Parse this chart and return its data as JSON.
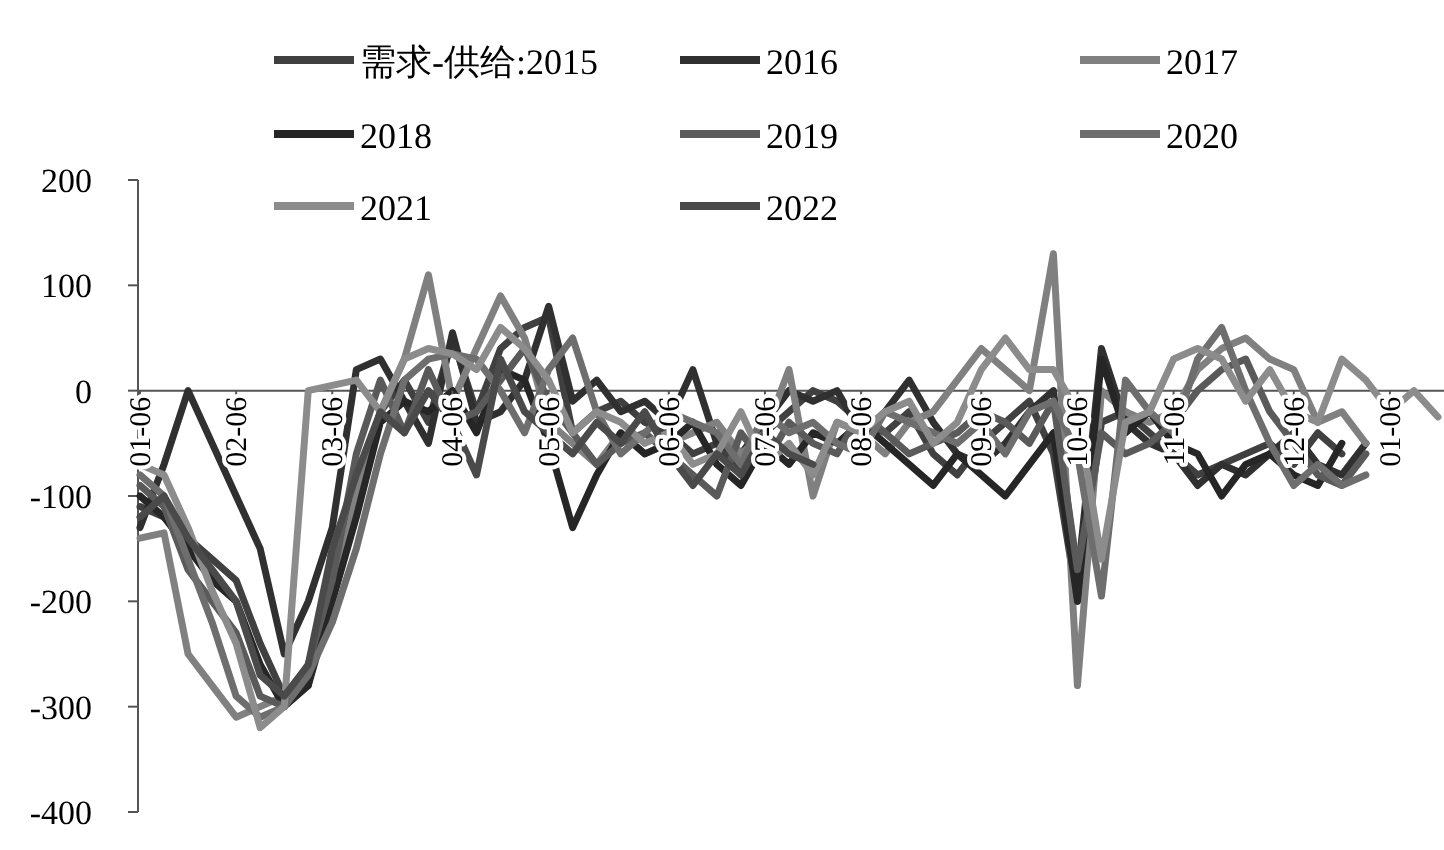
{
  "chart_data": {
    "type": "line",
    "categories": [
      "01-06",
      null,
      null,
      null,
      "02-06",
      null,
      null,
      null,
      "03-06",
      null,
      null,
      null,
      null,
      "04-06",
      null,
      null,
      null,
      "05-06",
      null,
      null,
      null,
      null,
      "06-06",
      null,
      null,
      null,
      "07-06",
      null,
      null,
      null,
      "08-06",
      null,
      null,
      null,
      null,
      "09-06",
      null,
      null,
      null,
      "10-06",
      null,
      null,
      null,
      "11-06",
      null,
      null,
      null,
      null,
      "12-06",
      null,
      null,
      null,
      "01-06",
      null,
      null
    ],
    "ylim": [
      -400,
      200
    ],
    "yticks": [
      -400,
      -300,
      -200,
      -100,
      0,
      100,
      200
    ],
    "legend": "top",
    "series": [
      {
        "name": "需求-供给:2015",
        "color": "#404040",
        "values": [
          -110,
          -120,
          -140,
          -160,
          -180,
          -240,
          -290,
          -280,
          -150,
          -100,
          -20,
          10,
          -30,
          50,
          -20,
          40,
          60,
          70,
          -40,
          -20,
          -10,
          -30,
          -40,
          -60,
          -50,
          -80,
          -40,
          -20,
          0,
          -10,
          -30,
          -40,
          -20,
          -60,
          -80,
          -50,
          -30,
          -10,
          -60,
          -200,
          -30,
          -20,
          -40,
          -60,
          -80,
          -70,
          -60,
          -50,
          -70,
          -40,
          -60,
          null,
          null,
          null,
          null
        ]
      },
      {
        "name": "2016",
        "color": "#303030",
        "values": [
          -130,
          -70,
          0,
          -50,
          -100,
          -150,
          -250,
          -200,
          -130,
          20,
          30,
          -10,
          -50,
          55,
          -30,
          -20,
          10,
          80,
          -10,
          10,
          -20,
          -10,
          -30,
          20,
          -50,
          -60,
          -30,
          0,
          -10,
          0,
          -40,
          -20,
          10,
          -30,
          -60,
          -70,
          -50,
          -20,
          0,
          -180,
          40,
          -30,
          -50,
          -60,
          -90,
          -70,
          -80,
          -60,
          -40,
          -70,
          -80,
          -50,
          null,
          null,
          null
        ]
      },
      {
        "name": "2017",
        "color": "#808080",
        "values": [
          -140,
          -135,
          -250,
          -280,
          -310,
          -300,
          -290,
          -270,
          -200,
          -100,
          -20,
          30,
          110,
          -10,
          40,
          90,
          50,
          -30,
          -50,
          -70,
          -40,
          -60,
          -50,
          -40,
          -30,
          -60,
          -40,
          20,
          -100,
          -30,
          -40,
          -60,
          -30,
          -20,
          10,
          40,
          20,
          0,
          130,
          -280,
          0,
          -20,
          -30,
          -20,
          20,
          40,
          50,
          30,
          20,
          -30,
          -20,
          -50,
          null,
          null,
          null
        ]
      },
      {
        "name": "2018",
        "color": "#262626",
        "values": [
          -100,
          -120,
          -150,
          -180,
          -200,
          -260,
          -300,
          -280,
          -200,
          -120,
          -30,
          -10,
          -20,
          0,
          -40,
          20,
          10,
          -50,
          -130,
          -80,
          -40,
          -60,
          -50,
          -30,
          -70,
          -90,
          -50,
          -70,
          -40,
          -50,
          -30,
          -50,
          -70,
          -90,
          -60,
          -80,
          -100,
          -70,
          -40,
          -200,
          30,
          -40,
          -20,
          -50,
          -60,
          -100,
          -70,
          -60,
          -80,
          -90,
          -50,
          null,
          null,
          null,
          null
        ]
      },
      {
        "name": "2019",
        "color": "#5a5a5a",
        "values": [
          -90,
          -110,
          -170,
          -200,
          -230,
          -290,
          -300,
          -260,
          -180,
          -60,
          10,
          -40,
          20,
          -30,
          -20,
          10,
          40,
          -10,
          -40,
          -70,
          -50,
          -40,
          -60,
          -80,
          -100,
          -40,
          -70,
          -30,
          -50,
          -60,
          -20,
          -40,
          -60,
          -50,
          -40,
          -20,
          -30,
          -50,
          -10,
          -170,
          -40,
          -60,
          -50,
          -30,
          0,
          20,
          30,
          -20,
          -50,
          -80,
          -90,
          -60,
          null,
          null,
          null
        ]
      },
      {
        "name": "2020",
        "color": "#6e6e6e",
        "values": [
          -80,
          -100,
          -160,
          -220,
          -290,
          -310,
          -300,
          -270,
          -220,
          -150,
          -60,
          10,
          30,
          35,
          30,
          0,
          -40,
          20,
          50,
          -20,
          -60,
          -40,
          -20,
          -30,
          -40,
          -70,
          -20,
          -40,
          -30,
          -50,
          -60,
          -20,
          -30,
          -40,
          -50,
          -30,
          -60,
          -20,
          -10,
          -60,
          -195,
          10,
          -20,
          -40,
          30,
          60,
          0,
          -50,
          -90,
          -70,
          -90,
          -80,
          null,
          null,
          null
        ]
      },
      {
        "name": "2021",
        "color": "#8c8c8c",
        "values": [
          -70,
          -80,
          -130,
          -190,
          -240,
          -320,
          -300,
          0,
          5,
          10,
          -20,
          30,
          40,
          35,
          20,
          60,
          40,
          10,
          -40,
          -20,
          -30,
          -50,
          -40,
          -70,
          -60,
          -20,
          -70,
          -50,
          -80,
          -30,
          -40,
          -20,
          -10,
          -50,
          -30,
          20,
          50,
          20,
          20,
          -20,
          -160,
          -30,
          -20,
          30,
          40,
          30,
          -10,
          20,
          -20,
          -30,
          30,
          10,
          -20,
          0,
          -25
        ]
      },
      {
        "name": "2022",
        "color": "#4a4a4a",
        "values": [
          -120,
          -100,
          -140,
          -170,
          -200,
          -270,
          -290,
          -260,
          -150,
          -80,
          -20,
          -40,
          0,
          -30,
          -80,
          30,
          -20,
          -40,
          -60,
          -30,
          -50,
          -20,
          -60,
          -90,
          -60,
          -80,
          -40,
          -60,
          -70,
          null,
          null,
          null,
          null,
          null,
          null,
          null,
          null,
          null,
          null,
          null,
          null,
          null,
          null,
          null,
          null,
          null,
          null,
          null,
          null,
          null,
          null,
          null,
          null,
          null,
          null
        ]
      }
    ]
  }
}
